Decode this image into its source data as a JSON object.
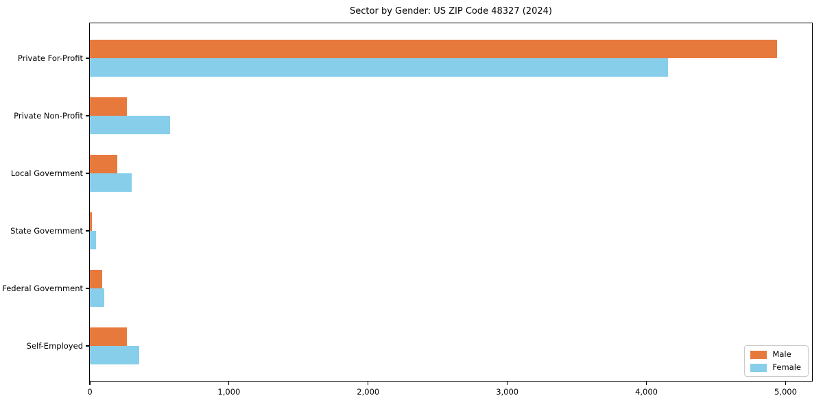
{
  "chart_data": {
    "type": "bar",
    "orientation": "horizontal",
    "title": "Sector by Gender: US ZIP Code 48327 (2024)",
    "categories": [
      "Private For-Profit",
      "Private Non-Profit",
      "Local Government",
      "State Government",
      "Federal Government",
      "Self-Employed"
    ],
    "series": [
      {
        "name": "Male",
        "color": "#e8793d",
        "values": [
          4940,
          265,
          197,
          15,
          90,
          267
        ]
      },
      {
        "name": "Female",
        "color": "#87ceeb",
        "values": [
          4155,
          578,
          303,
          44,
          102,
          357
        ]
      }
    ],
    "xlabel": "",
    "ylabel": "",
    "xlim": [
      0,
      5190
    ],
    "xticks": [
      0,
      1000,
      2000,
      3000,
      4000,
      5000
    ],
    "xtick_labels": [
      "0",
      "1,000",
      "2,000",
      "3,000",
      "4,000",
      "5,000"
    ],
    "grid": false,
    "legend": {
      "position": "lower right",
      "entries": [
        "Male",
        "Female"
      ]
    }
  }
}
